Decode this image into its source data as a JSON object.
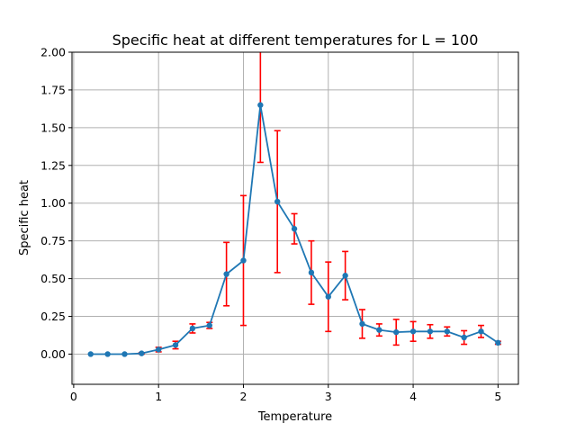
{
  "chart_data": {
    "type": "line",
    "title": "Specific heat at different temperatures for L = 100",
    "xlabel": "Temperature",
    "ylabel": "Specific heat",
    "xlim": [
      -0.02,
      5.24
    ],
    "ylim": [
      -0.2,
      2.0
    ],
    "xticks": [
      "0",
      "1",
      "2",
      "3",
      "4",
      "5"
    ],
    "yticks": [
      "0.00",
      "0.25",
      "0.50",
      "0.75",
      "1.00",
      "1.25",
      "1.50",
      "1.75",
      "2.00"
    ],
    "grid": true,
    "series": [
      {
        "line_color": "#1f77b4",
        "errorbar_color": "#ff0000",
        "x": [
          0.2,
          0.4,
          0.6,
          0.8,
          1.0,
          1.2,
          1.4,
          1.6,
          1.8,
          2.0,
          2.2,
          2.4,
          2.6,
          2.8,
          3.0,
          3.2,
          3.4,
          3.6,
          3.8,
          4.0,
          4.2,
          4.4,
          4.6,
          4.8,
          5.0
        ],
        "y": [
          0.0,
          0.0,
          0.0,
          0.005,
          0.03,
          0.06,
          0.17,
          0.19,
          0.53,
          0.62,
          1.65,
          1.01,
          0.83,
          0.54,
          0.38,
          0.52,
          0.2,
          0.16,
          0.145,
          0.15,
          0.15,
          0.15,
          0.11,
          0.15,
          0.075
        ],
        "yerr": [
          0.0,
          0.0,
          0.0,
          0.005,
          0.015,
          0.025,
          0.03,
          0.02,
          0.21,
          0.43,
          0.38,
          0.47,
          0.1,
          0.21,
          0.23,
          0.16,
          0.095,
          0.04,
          0.085,
          0.065,
          0.045,
          0.03,
          0.045,
          0.04,
          0.01
        ]
      }
    ]
  }
}
